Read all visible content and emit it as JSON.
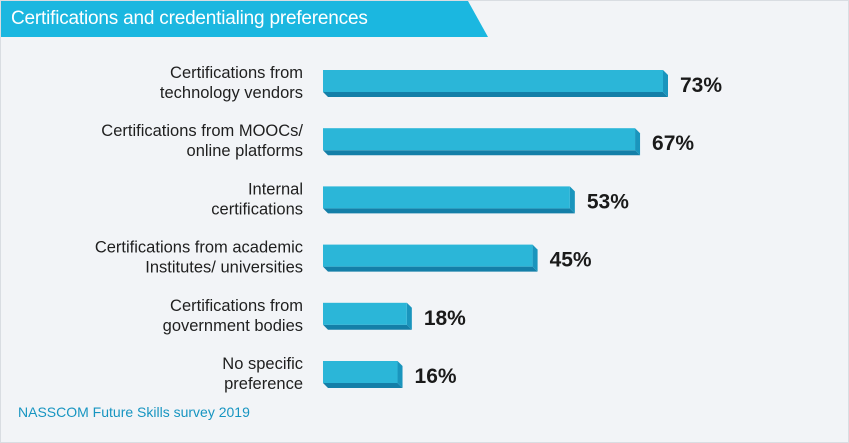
{
  "header": {
    "title": "Certifications and credentialing preferences"
  },
  "source_note": "NASSCOM Future Skills survey 2019",
  "colors": {
    "banner": "#1bb7e0",
    "bar_front": "#2bb6d8",
    "bar_bottom": "#147fa8",
    "bar_side": "#1a95bd",
    "source_text": "#1795c1"
  },
  "chart_data": {
    "type": "bar",
    "orientation": "horizontal",
    "title": "Certifications and credentialing preferences",
    "categories": [
      [
        "Certifications from",
        "technology vendors"
      ],
      [
        "Certifications from MOOCs/",
        "online platforms"
      ],
      [
        "Internal",
        "certifications"
      ],
      [
        "Certifications from academic",
        "Institutes/ universities"
      ],
      [
        "Certifications from",
        "government bodies"
      ],
      [
        "No specific",
        "preference"
      ]
    ],
    "values": [
      73,
      67,
      53,
      45,
      18,
      16
    ],
    "value_labels": [
      "73%",
      "67%",
      "53%",
      "45%",
      "18%",
      "16%"
    ],
    "unit": "%",
    "xlim": [
      0,
      73
    ],
    "grid": false,
    "legend": "none"
  }
}
